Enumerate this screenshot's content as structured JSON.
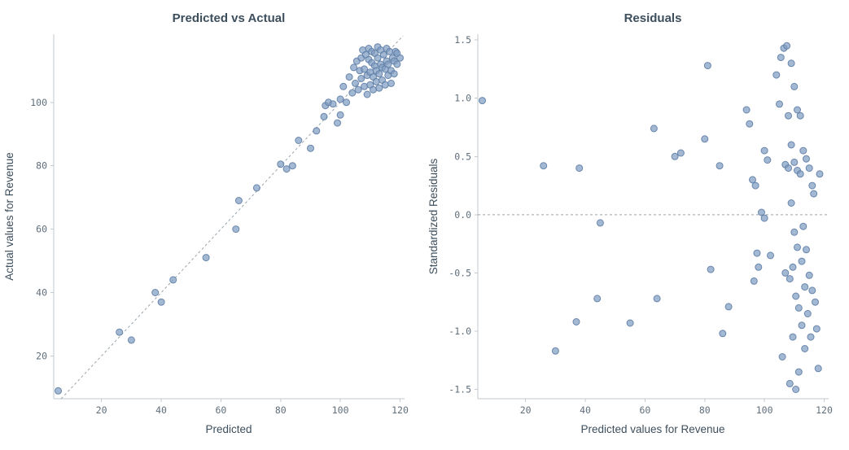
{
  "page": {
    "background": "#ffffff"
  },
  "chart_data": [
    {
      "type": "scatter",
      "title": "Predicted vs Actual",
      "xlabel": "Predicted",
      "ylabel": "Actual values for Revenue",
      "xlim": [
        4,
        121.5
      ],
      "ylim": [
        6.5,
        121.5
      ],
      "xtick_values": [
        20,
        40,
        60,
        80,
        100,
        120
      ],
      "xtick_labels": [
        "20",
        "40",
        "60",
        "80",
        "100",
        "120"
      ],
      "ytick_values": [
        20,
        40,
        60,
        80,
        100
      ],
      "ytick_labels": [
        "20",
        "40",
        "60",
        "80",
        "100"
      ],
      "grid": false,
      "legend": "none",
      "point_color": "#7f9cc0",
      "point_stroke": "#5e7da6",
      "ref_line": {
        "name": "identity-line",
        "style": "dashed",
        "x1": 6.5,
        "y1": 6.5,
        "x2": 121,
        "y2": 121
      },
      "points": [
        [
          5.5,
          9
        ],
        [
          26,
          27.5
        ],
        [
          30,
          25
        ],
        [
          38,
          40
        ],
        [
          40,
          37
        ],
        [
          44,
          44
        ],
        [
          55,
          51
        ],
        [
          65,
          60
        ],
        [
          66,
          69
        ],
        [
          72,
          73
        ],
        [
          80,
          80.5
        ],
        [
          82,
          79
        ],
        [
          84,
          80
        ],
        [
          86,
          88
        ],
        [
          90,
          85.5
        ],
        [
          92,
          91
        ],
        [
          94.5,
          95.5
        ],
        [
          95,
          99
        ],
        [
          96,
          100
        ],
        [
          97.5,
          99.5
        ],
        [
          99,
          93.5
        ],
        [
          100,
          101
        ],
        [
          100,
          96
        ],
        [
          101,
          105
        ],
        [
          102,
          100
        ],
        [
          103,
          108
        ],
        [
          104,
          103
        ],
        [
          104.5,
          111
        ],
        [
          105,
          106
        ],
        [
          105.5,
          113
        ],
        [
          106,
          104
        ],
        [
          106.5,
          110
        ],
        [
          107,
          107.5
        ],
        [
          107,
          114
        ],
        [
          107.5,
          116.5
        ],
        [
          108,
          105
        ],
        [
          108,
          110.5
        ],
        [
          108.5,
          115
        ],
        [
          109,
          102.5
        ],
        [
          109,
          108.5
        ],
        [
          109.5,
          113.5
        ],
        [
          109.5,
          117
        ],
        [
          110,
          105.5
        ],
        [
          110,
          109.5
        ],
        [
          110.5,
          112.5
        ],
        [
          110.5,
          116
        ],
        [
          111,
          104
        ],
        [
          111,
          108
        ],
        [
          111.5,
          111.5
        ],
        [
          111.5,
          115.5
        ],
        [
          112,
          106.5
        ],
        [
          112,
          110
        ],
        [
          112.5,
          114
        ],
        [
          112.5,
          117.5
        ],
        [
          113,
          104.5
        ],
        [
          113,
          109
        ],
        [
          113.5,
          112
        ],
        [
          113.5,
          116.5
        ],
        [
          114,
          107
        ],
        [
          114,
          111
        ],
        [
          114.5,
          115
        ],
        [
          115,
          105.5
        ],
        [
          115,
          110.5
        ],
        [
          115.5,
          113
        ],
        [
          115.5,
          117
        ],
        [
          116,
          108.5
        ],
        [
          116,
          112
        ],
        [
          116.5,
          116
        ],
        [
          117,
          106
        ],
        [
          117,
          110
        ],
        [
          117.5,
          114
        ],
        [
          118,
          109
        ],
        [
          118,
          113
        ],
        [
          118.5,
          116
        ],
        [
          119,
          112
        ],
        [
          119,
          115.5
        ],
        [
          120,
          114
        ]
      ]
    },
    {
      "type": "scatter",
      "title": "Residuals",
      "xlabel": "Predicted values for Revenue",
      "ylabel": "Standardized Residuals",
      "xlim": [
        4,
        121.5
      ],
      "ylim": [
        -1.58,
        1.55
      ],
      "xtick_values": [
        20,
        40,
        60,
        80,
        100,
        120
      ],
      "xtick_labels": [
        "20",
        "40",
        "60",
        "80",
        "100",
        "120"
      ],
      "ytick_values": [
        -1.5,
        -1.0,
        -0.5,
        0.0,
        0.5,
        1.0,
        1.5
      ],
      "ytick_labels": [
        "-1.5",
        "-1.0",
        "-0.5",
        "0.0",
        "0.5",
        "1.0",
        "1.5"
      ],
      "grid": false,
      "legend": "none",
      "point_color": "#7f9cc0",
      "point_stroke": "#5e7da6",
      "ref_line": {
        "name": "zero-line",
        "style": "dashed",
        "x1": 4,
        "y1": 0,
        "x2": 121.5,
        "y2": 0
      },
      "points": [
        [
          5.5,
          0.98
        ],
        [
          26,
          0.42
        ],
        [
          30,
          -1.17
        ],
        [
          37,
          -0.92
        ],
        [
          38,
          0.4
        ],
        [
          44,
          -0.72
        ],
        [
          45,
          -0.07
        ],
        [
          55,
          -0.93
        ],
        [
          63,
          0.74
        ],
        [
          64,
          -0.72
        ],
        [
          70,
          0.5
        ],
        [
          72,
          0.53
        ],
        [
          80,
          0.65
        ],
        [
          81,
          1.28
        ],
        [
          82,
          -0.47
        ],
        [
          85,
          0.42
        ],
        [
          86,
          -1.02
        ],
        [
          88,
          -0.79
        ],
        [
          94,
          0.9
        ],
        [
          95,
          0.78
        ],
        [
          96,
          0.3
        ],
        [
          96.5,
          -0.57
        ],
        [
          97,
          0.25
        ],
        [
          97.5,
          -0.33
        ],
        [
          98,
          -0.45
        ],
        [
          99,
          0.02
        ],
        [
          100,
          -0.03
        ],
        [
          100,
          0.55
        ],
        [
          101,
          0.47
        ],
        [
          102,
          -0.35
        ],
        [
          104,
          1.2
        ],
        [
          105,
          0.95
        ],
        [
          105.5,
          1.35
        ],
        [
          106,
          -1.22
        ],
        [
          106.5,
          1.43
        ],
        [
          107,
          0.43
        ],
        [
          107,
          -0.5
        ],
        [
          107.5,
          1.45
        ],
        [
          108,
          0.85
        ],
        [
          108,
          0.4
        ],
        [
          108.5,
          -0.55
        ],
        [
          108.5,
          -1.45
        ],
        [
          109,
          1.3
        ],
        [
          109,
          0.6
        ],
        [
          109,
          0.1
        ],
        [
          109.5,
          -0.45
        ],
        [
          109.5,
          -1.05
        ],
        [
          110,
          1.1
        ],
        [
          110,
          0.45
        ],
        [
          110,
          -0.15
        ],
        [
          110.5,
          -0.7
        ],
        [
          110.5,
          -1.5
        ],
        [
          111,
          0.9
        ],
        [
          111,
          0.38
        ],
        [
          111,
          -0.28
        ],
        [
          111.5,
          -0.8
        ],
        [
          111.5,
          -1.35
        ],
        [
          112,
          0.85
        ],
        [
          112,
          0.35
        ],
        [
          112.5,
          -0.4
        ],
        [
          112.5,
          -0.95
        ],
        [
          113,
          0.55
        ],
        [
          113,
          -0.1
        ],
        [
          113.5,
          -0.62
        ],
        [
          113.5,
          -1.15
        ],
        [
          114,
          0.48
        ],
        [
          114,
          -0.3
        ],
        [
          114.5,
          -0.85
        ],
        [
          115,
          0.4
        ],
        [
          115,
          -0.52
        ],
        [
          115.5,
          -1.05
        ],
        [
          116,
          0.25
        ],
        [
          116,
          -0.65
        ],
        [
          116.5,
          0.18
        ],
        [
          117,
          -0.75
        ],
        [
          117.5,
          -0.98
        ],
        [
          118,
          -1.32
        ],
        [
          118.5,
          0.35
        ]
      ]
    }
  ]
}
